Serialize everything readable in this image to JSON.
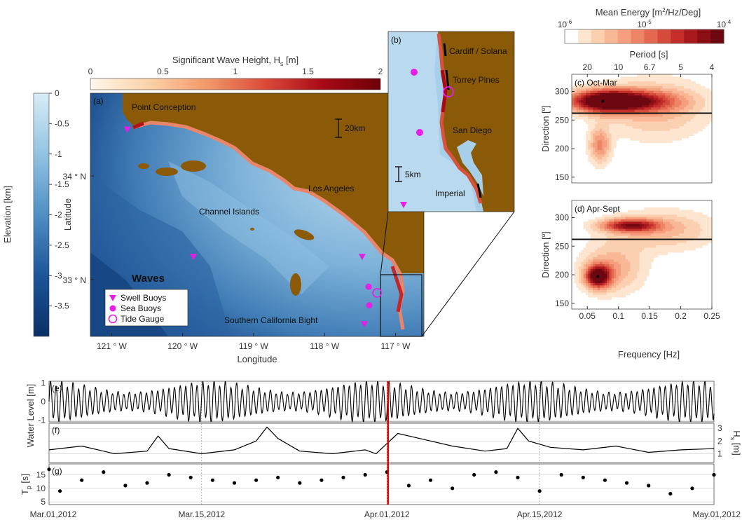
{
  "chart_data": [
    {
      "id": "map_a",
      "type": "map",
      "panel_label": "(a)",
      "xlabel": "Longitude",
      "ylabel": "Latitude",
      "x_ticks": [
        {
          "value": -121,
          "label": "121 ° W"
        },
        {
          "value": -120,
          "label": "120 ° W"
        },
        {
          "value": -119,
          "label": "119 ° W"
        },
        {
          "value": -118,
          "label": "118 ° W"
        },
        {
          "value": -117,
          "label": "117 ° W"
        }
      ],
      "y_ticks": [
        {
          "value": 34,
          "label": "34 ° N"
        },
        {
          "value": 33,
          "label": "33 ° N"
        }
      ],
      "xlim": [
        -121.3,
        -116.6
      ],
      "ylim": [
        32.45,
        34.8
      ],
      "hs_colorbar": {
        "title": "Significant Wave Height, H",
        "title_sub": "s",
        "title_unit": " [m]",
        "ticks": [
          "0",
          "0.5",
          "1",
          "1.5",
          "2"
        ],
        "range": [
          0,
          2
        ],
        "colors": [
          "#fff6ea",
          "#fbd2a8",
          "#f29a6b",
          "#dc4a3a",
          "#a80a16",
          "#6e0008"
        ]
      },
      "elevation_colorbar": {
        "title": "Elevation [km]",
        "ticks": [
          "0",
          "-0.5",
          "-1",
          "-1.5",
          "-2",
          "-2.5",
          "-3",
          "-3.5"
        ],
        "range": [
          -4,
          0
        ],
        "colors": [
          "#d9ecf7",
          "#93c3e2",
          "#4f8fc3",
          "#1d5598",
          "#0a2f66"
        ]
      },
      "labels": [
        "Point Conception",
        "Los Angeles",
        "Channel Islands",
        "Southern California Bight"
      ],
      "scale_bar": "20km",
      "legend": {
        "title": "Waves",
        "items": [
          "Swell Buoys",
          "Sea Buoys",
          "Tide Gauge"
        ]
      },
      "swell_buoys": [
        [
          -120.78,
          34.45
        ],
        [
          -119.85,
          33.22
        ],
        [
          -117.47,
          33.22
        ],
        [
          -117.44,
          32.57
        ]
      ],
      "sea_buoys": [
        [
          -117.38,
          32.93
        ],
        [
          -117.37,
          32.75
        ]
      ],
      "tide_gauge": [
        [
          -117.26,
          32.87
        ]
      ]
    },
    {
      "id": "inset_b",
      "type": "map",
      "panel_label": "(b)",
      "labels": [
        "Cardiff / Solana",
        "Torrey Pines",
        "San Diego",
        "Imperial"
      ],
      "scale_bar": "5km"
    },
    {
      "id": "energy_colorbar",
      "type": "colorbar",
      "title": "Mean Energy [m",
      "title_sup": "2",
      "title_tail": "/Hz/Deg]",
      "scale": "log",
      "ticks": [
        {
          "base": "10",
          "exp": "-6"
        },
        {
          "base": "10",
          "exp": "-5"
        },
        {
          "base": "10",
          "exp": "-4"
        }
      ],
      "colors": [
        "#ffffff",
        "#fde5cf",
        "#fbd0b0",
        "#f8b896",
        "#f59f7e",
        "#ee8466",
        "#e3684f",
        "#d64a3b",
        "#c32d2a",
        "#a91a1e",
        "#8c0f15",
        "#6d0810"
      ]
    },
    {
      "id": "spectrum_c",
      "type": "heatmap",
      "panel_label": "(c) Oct-Mar",
      "xlabel": "",
      "ylabel": "Direction [",
      "ylabel_sup": "o",
      "ylabel_tail": "]",
      "xlim": [
        0.025,
        0.25
      ],
      "ylim": [
        140,
        330
      ],
      "y_ticks": [
        150,
        200,
        250,
        300
      ],
      "period_axis": {
        "title": "Period [s]",
        "ticks": [
          {
            "freq": 0.05,
            "label": "20"
          },
          {
            "freq": 0.1,
            "label": "10"
          },
          {
            "freq": 0.15,
            "label": "6.7"
          },
          {
            "freq": 0.2,
            "label": "5"
          },
          {
            "freq": 0.25,
            "label": "4"
          }
        ]
      },
      "reference_line_direction": 262,
      "blobs": [
        {
          "freq": 0.075,
          "dir": 283,
          "sf": 0.04,
          "sd": 14,
          "amp": 1.0
        },
        {
          "freq": 0.13,
          "dir": 283,
          "sf": 0.05,
          "sd": 13,
          "amp": 0.55
        },
        {
          "freq": 0.07,
          "dir": 205,
          "sf": 0.012,
          "sd": 22,
          "amp": 0.45
        },
        {
          "freq": 0.16,
          "dir": 270,
          "sf": 0.06,
          "sd": 38,
          "amp": 0.3
        }
      ]
    },
    {
      "id": "spectrum_d",
      "type": "heatmap",
      "panel_label": "(d) Apr-Sept",
      "xlabel": "Frequency [Hz]",
      "ylabel": "Direction [",
      "ylabel_sup": "o",
      "ylabel_tail": "]",
      "xlim": [
        0.025,
        0.25
      ],
      "ylim": [
        140,
        330
      ],
      "y_ticks": [
        150,
        200,
        250,
        300
      ],
      "x_ticks": [
        0.05,
        0.1,
        0.15,
        0.2,
        0.25
      ],
      "reference_line_direction": 262,
      "blobs": [
        {
          "freq": 0.067,
          "dir": 197,
          "sf": 0.014,
          "sd": 14,
          "amp": 1.0
        },
        {
          "freq": 0.118,
          "dir": 286,
          "sf": 0.032,
          "sd": 8,
          "amp": 0.8
        },
        {
          "freq": 0.09,
          "dir": 210,
          "sf": 0.035,
          "sd": 30,
          "amp": 0.35
        },
        {
          "freq": 0.17,
          "dir": 278,
          "sf": 0.06,
          "sd": 25,
          "amp": 0.3
        }
      ]
    },
    {
      "id": "timeseries",
      "type": "line",
      "x_tick_labels": [
        "Mar.01,2012",
        "Mar.15,2012",
        "Apr.01,2012",
        "Apr.15,2012",
        "May.01,2012"
      ],
      "x_tick_values": [
        "2012-03-01",
        "2012-03-15",
        "2012-04-01",
        "2012-04-15",
        "2012-05-01"
      ],
      "xlim": [
        "2012-03-01",
        "2012-05-01"
      ],
      "highlight_date": "2012-04-01",
      "panels": [
        {
          "panel_label": "(e)",
          "ylabel": "Water Level [m]",
          "ylim": [
            -1.1,
            1.1
          ],
          "y_ticks": [
            -1,
            0,
            1
          ],
          "description": "semi-diurnal tide, amplitude 0.5–1.0 m",
          "tide": {
            "period_hours": 12.42,
            "spring_neap_days": 14.77,
            "amp_max": 1.0,
            "amp_min": 0.45
          }
        },
        {
          "panel_label": "(f)",
          "ylabel": "H",
          "ylabel_sub": "s",
          "ylabel_tail": " [m]",
          "ylim": [
            0.3,
            3.4
          ],
          "y_ticks": [
            1,
            2,
            3
          ],
          "series": [
            {
              "x": [
                "2012-03-01",
                "2012-03-04",
                "2012-03-07",
                "2012-03-10",
                "2012-03-11",
                "2012-03-12",
                "2012-03-15",
                "2012-03-18",
                "2012-03-20",
                "2012-03-21",
                "2012-03-22",
                "2012-03-24",
                "2012-03-27",
                "2012-03-30",
                "2012-03-31",
                "2012-04-02",
                "2012-04-04",
                "2012-04-07",
                "2012-04-10",
                "2012-04-12",
                "2012-04-13",
                "2012-04-14",
                "2012-04-16",
                "2012-04-19",
                "2012-04-22",
                "2012-04-25",
                "2012-04-28",
                "2012-05-01"
              ],
              "y": [
                1.3,
                1.6,
                1.0,
                1.2,
                2.4,
                1.4,
                1.0,
                1.3,
                2.0,
                3.1,
                2.2,
                1.2,
                1.0,
                1.3,
                1.0,
                2.6,
                2.2,
                1.6,
                1.2,
                1.4,
                3.0,
                2.0,
                1.5,
                1.3,
                1.6,
                1.1,
                1.3,
                1.4
              ]
            }
          ]
        },
        {
          "panel_label": "(g)",
          "ylabel": "T",
          "ylabel_sub": "p",
          "ylabel_tail": " [s]",
          "ylim": [
            4,
            19
          ],
          "y_ticks": [
            5,
            10,
            15
          ],
          "type": "scatter",
          "series": [
            {
              "x": [
                "2012-03-01",
                "2012-03-02",
                "2012-03-04",
                "2012-03-06",
                "2012-03-08",
                "2012-03-10",
                "2012-03-12",
                "2012-03-14",
                "2012-03-16",
                "2012-03-18",
                "2012-03-20",
                "2012-03-22",
                "2012-03-24",
                "2012-03-26",
                "2012-03-28",
                "2012-03-30",
                "2012-04-01",
                "2012-04-03",
                "2012-04-05",
                "2012-04-07",
                "2012-04-09",
                "2012-04-11",
                "2012-04-13",
                "2012-04-15",
                "2012-04-17",
                "2012-04-19",
                "2012-04-21",
                "2012-04-23",
                "2012-04-25",
                "2012-04-27",
                "2012-04-29",
                "2012-05-01"
              ],
              "y": [
                17,
                9,
                13,
                16,
                11,
                12,
                15,
                14,
                13,
                12,
                13,
                14,
                12,
                13,
                14,
                15,
                16,
                11,
                13,
                10,
                15,
                16,
                14,
                9,
                15,
                14,
                13,
                12,
                11,
                8,
                10,
                15
              ]
            }
          ]
        }
      ]
    }
  ]
}
